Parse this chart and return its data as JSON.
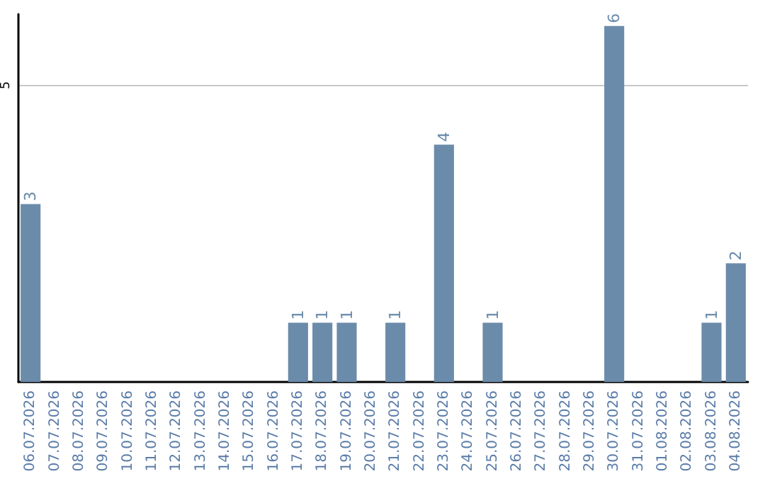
{
  "chart_data": {
    "type": "bar",
    "categories": [
      "06.07.2026",
      "07.07.2026",
      "08.07.2026",
      "09.07.2026",
      "10.07.2026",
      "11.07.2026",
      "12.07.2026",
      "13.07.2026",
      "14.07.2026",
      "15.07.2026",
      "16.07.2026",
      "17.07.2026",
      "18.07.2026",
      "19.07.2026",
      "20.07.2026",
      "21.07.2026",
      "22.07.2026",
      "23.07.2026",
      "24.07.2026",
      "25.07.2026",
      "26.07.2026",
      "27.07.2026",
      "28.07.2026",
      "29.07.2026",
      "30.07.2026",
      "31.07.2026",
      "01.08.2026",
      "02.08.2026",
      "03.08.2026",
      "04.08.2026"
    ],
    "values": [
      3,
      0,
      0,
      0,
      0,
      0,
      0,
      0,
      0,
      0,
      0,
      1,
      1,
      1,
      0,
      1,
      0,
      4,
      0,
      1,
      0,
      0,
      0,
      0,
      6,
      0,
      0,
      0,
      1,
      2
    ],
    "value_labels": [
      "3",
      null,
      null,
      null,
      null,
      null,
      null,
      null,
      null,
      null,
      null,
      "1",
      "1",
      "1",
      null,
      "1",
      null,
      "4",
      null,
      "1",
      null,
      null,
      null,
      null,
      "6",
      null,
      null,
      null,
      "1",
      "2"
    ],
    "color": "#6b8bab",
    "ylim": [
      0,
      6.2
    ],
    "yticks": [
      5
    ],
    "grid": "y"
  }
}
